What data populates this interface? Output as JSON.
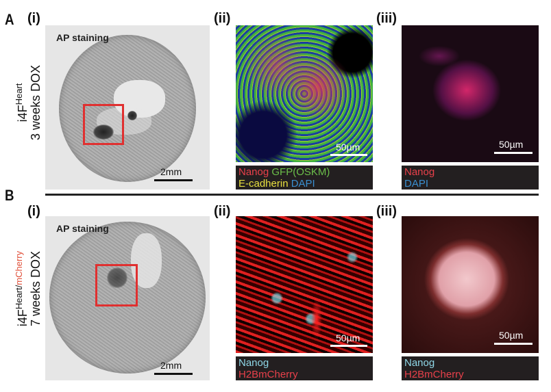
{
  "panels": {
    "A": {
      "letter": "A",
      "side_label": {
        "line1": "i4F",
        "superscript": "Heart",
        "line2": "3 weeks DOX"
      },
      "i": {
        "label": "(i)",
        "title": "AP staining",
        "scale": "2mm"
      },
      "ii": {
        "label": "(ii)",
        "scale": "50µm",
        "legend": [
          [
            {
              "text": "Nanog",
              "color": "#e8404a"
            },
            {
              "text": "GFP(OSKM)",
              "color": "#6cc04a"
            }
          ],
          [
            {
              "text": "E-cadherin",
              "color": "#e8e040"
            },
            {
              "text": "DAPI",
              "color": "#3a8fd0"
            }
          ]
        ]
      },
      "iii": {
        "label": "(iii)",
        "scale": "50µm",
        "legend": [
          [
            {
              "text": "Nanog",
              "color": "#e8404a"
            }
          ],
          [
            {
              "text": "DAPI",
              "color": "#3a8fd0"
            }
          ]
        ]
      }
    },
    "B": {
      "letter": "B",
      "side_label": {
        "line1": "i4F",
        "superscript": "Heart/",
        "superscript_red": "mCherry",
        "line2": "7 weeks DOX",
        "red_color": "#e0503a"
      },
      "i": {
        "label": "(i)",
        "title": "AP staining",
        "scale": "2mm"
      },
      "ii": {
        "label": "(ii)",
        "scale": "50µm",
        "legend": [
          [
            {
              "text": "Nanog",
              "color": "#8fd8e8"
            }
          ],
          [
            {
              "text": "H2BmCherry",
              "color": "#e8404a"
            }
          ]
        ]
      },
      "iii": {
        "label": "(iii)",
        "scale": "50µm",
        "legend": [
          [
            {
              "text": "Nanog",
              "color": "#8fd8e8"
            }
          ],
          [
            {
              "text": "H2BmCherry",
              "color": "#e8404a"
            }
          ]
        ]
      }
    }
  },
  "colors": {
    "highlight_box": "#e03030",
    "legend_bg": "#231f20"
  }
}
